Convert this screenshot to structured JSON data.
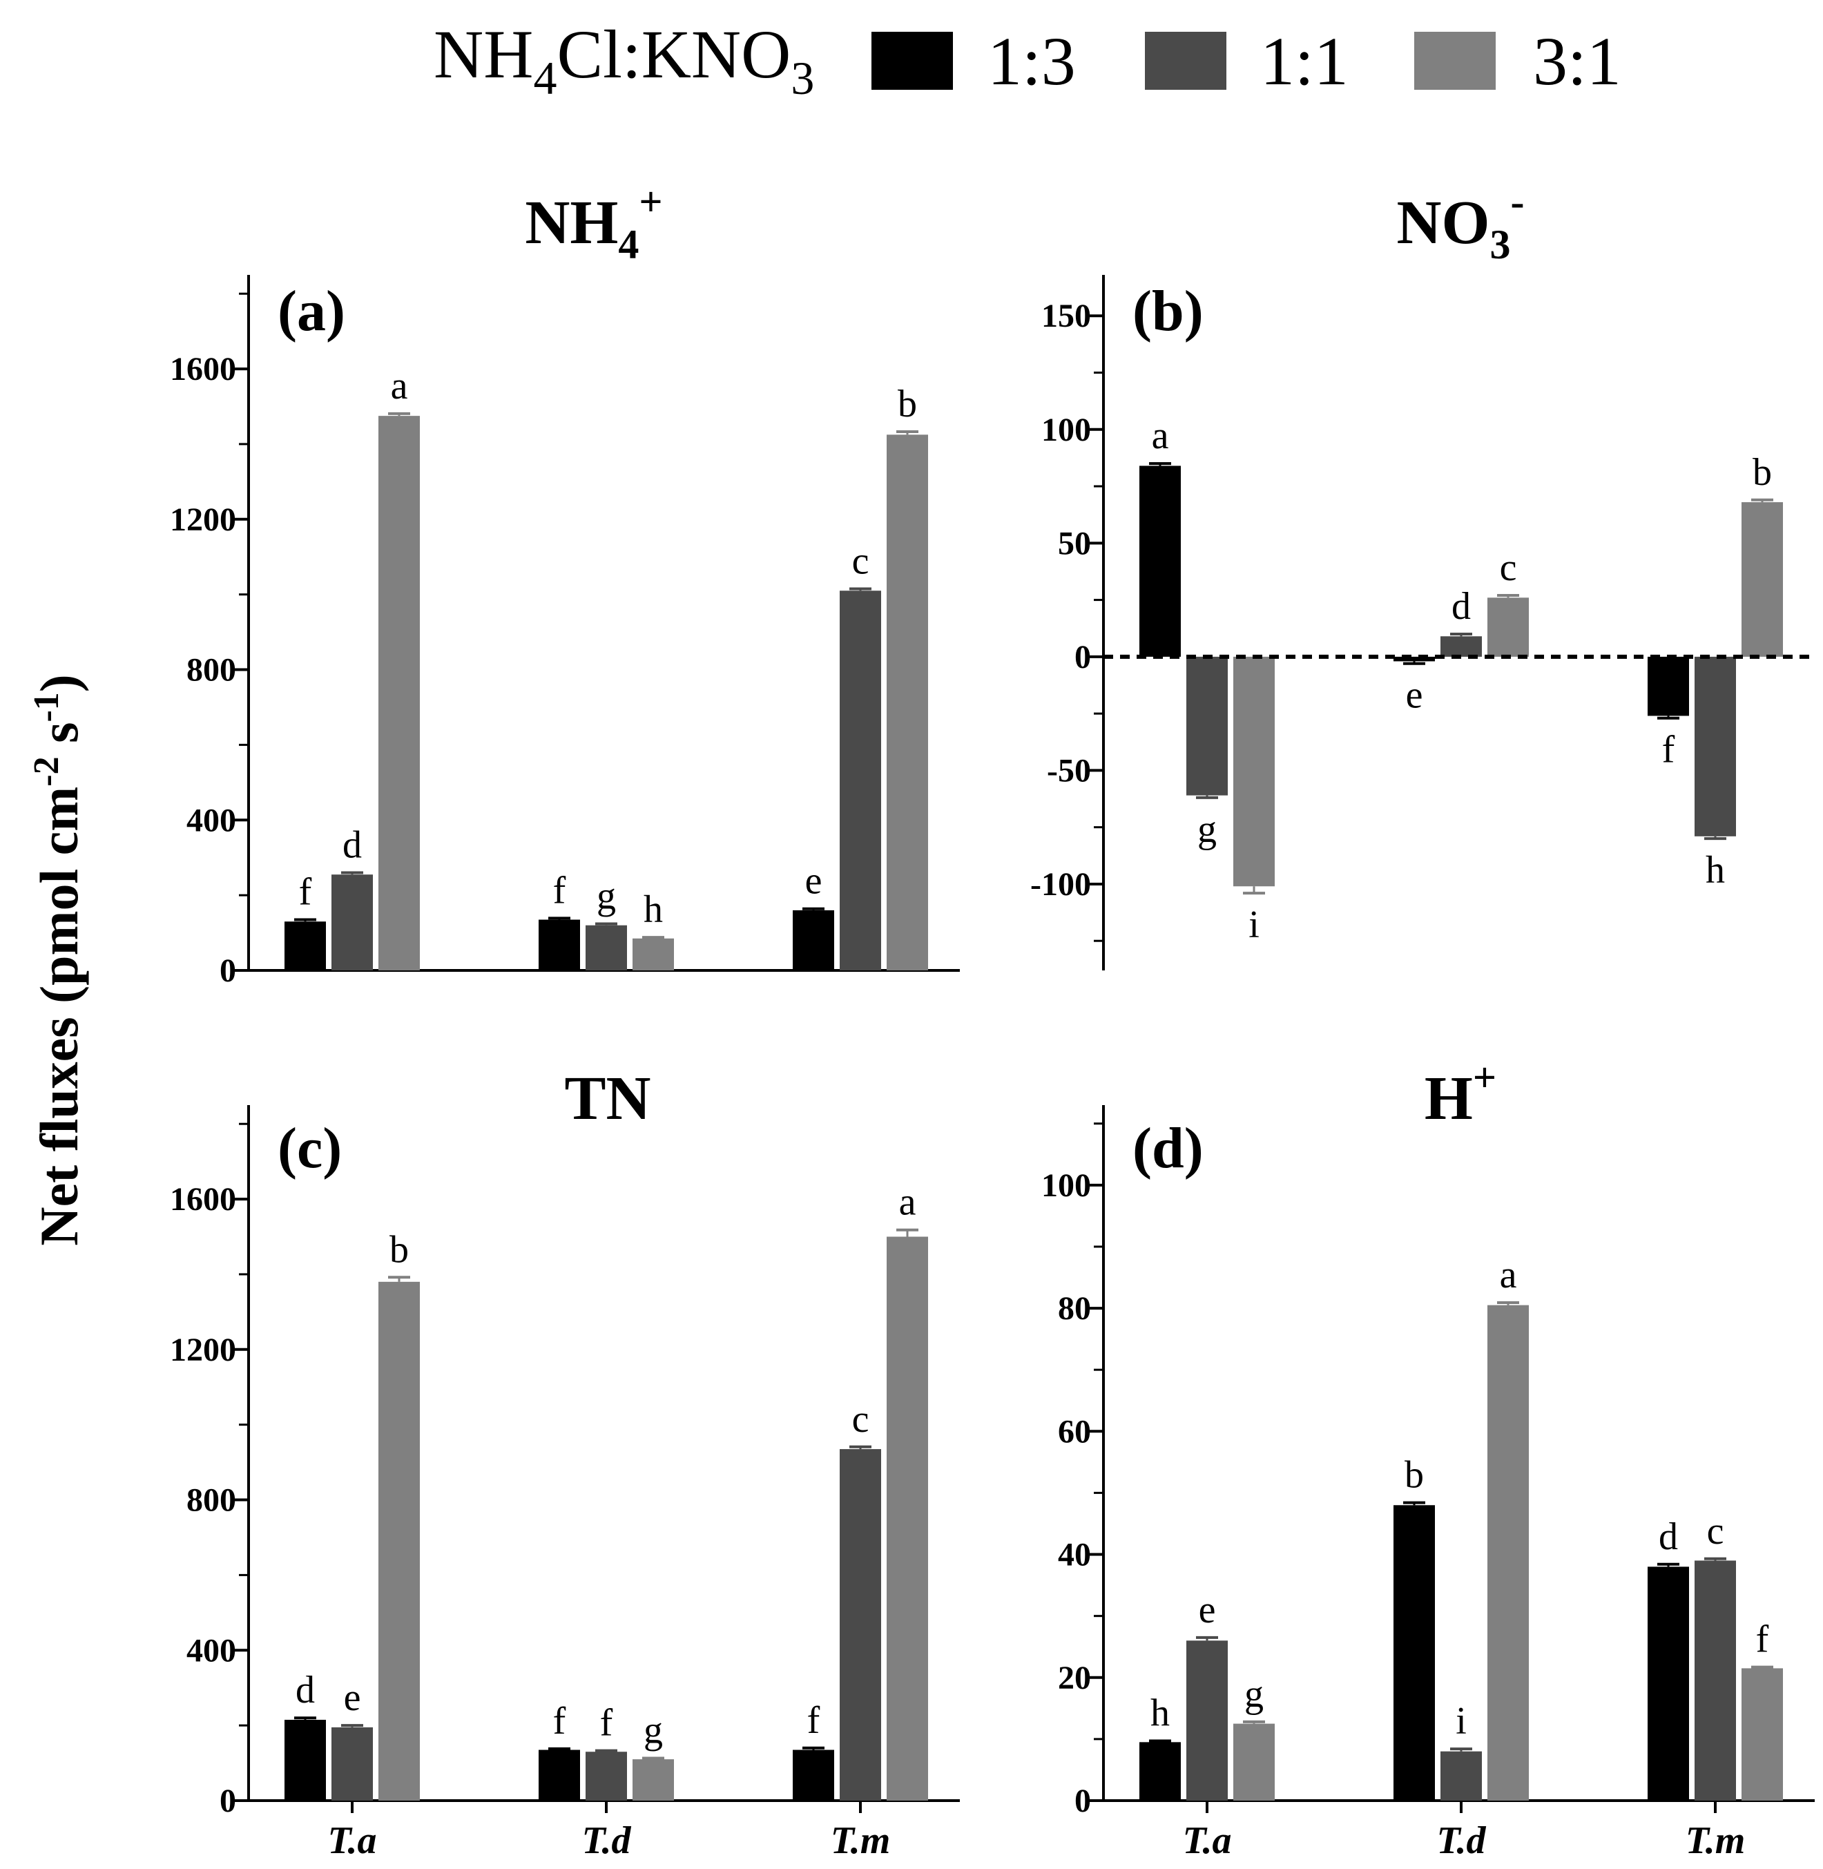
{
  "legend": {
    "label_main": "NH",
    "label_sub1": "4",
    "label_mid": "Cl:KNO",
    "label_sub2": "3",
    "entries": [
      {
        "name": "1:3",
        "color": "#000000"
      },
      {
        "name": "1:1",
        "color": "#4a4a4a"
      },
      {
        "name": "3:1",
        "color": "#808080"
      }
    ]
  },
  "yaxis_title": "Net fluxes (pmol cm",
  "yaxis_title_sup1": "-2",
  "yaxis_title_mid": " s",
  "yaxis_title_sup2": "-1",
  "yaxis_title_end": ")",
  "chart_data": [
    {
      "type": "bar",
      "panel": "(a)",
      "title": "NH",
      "title_sub": "4",
      "title_sup": "+",
      "categories": [
        "T.a",
        "T.d",
        "T.m"
      ],
      "show_category_labels": false,
      "ylim": [
        0,
        1850
      ],
      "yticks": [
        0,
        400,
        800,
        1200,
        1600
      ],
      "minor_step": 200,
      "series": [
        {
          "name": "1:3",
          "values": [
            130,
            135,
            160
          ],
          "errors": [
            5,
            4,
            4
          ],
          "letters": [
            "f",
            "f",
            "e"
          ]
        },
        {
          "name": "1:1",
          "values": [
            255,
            120,
            1010
          ],
          "errors": [
            5,
            4,
            5
          ],
          "letters": [
            "d",
            "g",
            "c"
          ]
        },
        {
          "name": "3:1",
          "values": [
            1475,
            85,
            1425
          ],
          "errors": [
            6,
            3,
            8
          ],
          "letters": [
            "a",
            "h",
            "b"
          ]
        }
      ]
    },
    {
      "type": "bar",
      "panel": "(b)",
      "title": "NO",
      "title_sub": "3",
      "title_sup": "-",
      "categories": [
        "T.a",
        "T.d",
        "T.m"
      ],
      "show_category_labels": false,
      "ylim": [
        -138,
        168
      ],
      "yticks": [
        -100,
        -50,
        0,
        50,
        100,
        150
      ],
      "minor_step": 25,
      "zero_line": "dashed",
      "series": [
        {
          "name": "1:3",
          "values": [
            84,
            -2,
            -26
          ],
          "errors": [
            1,
            1,
            1
          ],
          "letters": [
            "a",
            "e",
            "f"
          ]
        },
        {
          "name": "1:1",
          "values": [
            -61,
            9,
            -79
          ],
          "errors": [
            1,
            1,
            1
          ],
          "letters": [
            "g",
            "d",
            "h"
          ]
        },
        {
          "name": "3:1",
          "values": [
            -101,
            26,
            68
          ],
          "errors": [
            3,
            1,
            1
          ],
          "letters": [
            "i",
            "c",
            "b"
          ]
        }
      ]
    },
    {
      "type": "bar",
      "panel": "(c)",
      "title": "TN",
      "title_sub": "",
      "title_sup": "",
      "categories": [
        "T.a",
        "T.d",
        "T.m"
      ],
      "show_category_labels": true,
      "ylim": [
        0,
        1850
      ],
      "yticks": [
        0,
        400,
        800,
        1200,
        1600
      ],
      "minor_step": 200,
      "series": [
        {
          "name": "1:3",
          "values": [
            215,
            135,
            135
          ],
          "errors": [
            5,
            3,
            5
          ],
          "letters": [
            "d",
            "f",
            "f"
          ]
        },
        {
          "name": "1:1",
          "values": [
            195,
            130,
            935
          ],
          "errors": [
            5,
            3,
            6
          ],
          "letters": [
            "e",
            "f",
            "c"
          ]
        },
        {
          "name": "3:1",
          "values": [
            1380,
            110,
            1500
          ],
          "errors": [
            12,
            3,
            18
          ],
          "letters": [
            "b",
            "g",
            "a"
          ]
        }
      ]
    },
    {
      "type": "bar",
      "panel": "(d)",
      "title": "H",
      "title_sub": "",
      "title_sup": "+",
      "categories": [
        "T.a",
        "T.d",
        "T.m"
      ],
      "show_category_labels": true,
      "ylim": [
        0,
        113
      ],
      "yticks": [
        0,
        20,
        40,
        60,
        80,
        100
      ],
      "minor_step": 10,
      "series": [
        {
          "name": "1:3",
          "values": [
            9.5,
            48,
            38
          ],
          "errors": [
            0.2,
            0.4,
            0.4
          ],
          "letters": [
            "h",
            "b",
            "d"
          ]
        },
        {
          "name": "1:1",
          "values": [
            26,
            8,
            39
          ],
          "errors": [
            0.5,
            0.4,
            0.3
          ],
          "letters": [
            "e",
            "i",
            "c"
          ]
        },
        {
          "name": "3:1",
          "values": [
            12.5,
            80.5,
            21.5
          ],
          "errors": [
            0.3,
            0.4,
            0.2
          ],
          "letters": [
            "g",
            "a",
            "f"
          ]
        }
      ]
    }
  ]
}
